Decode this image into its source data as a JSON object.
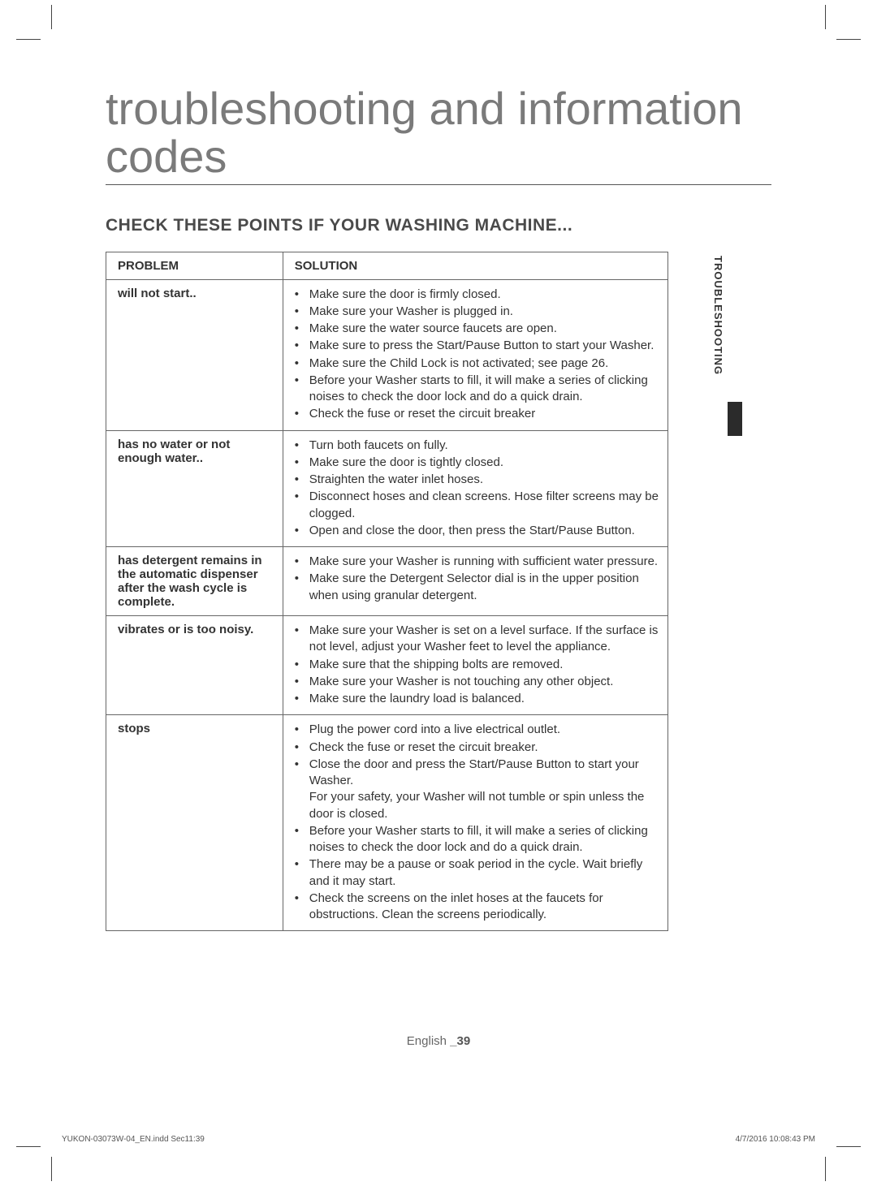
{
  "title": "troubleshooting and information codes",
  "section_heading": "CHECK THESE POINTS IF YOUR WASHING MACHINE...",
  "side_tab": "TROUBLESHOOTING",
  "table": {
    "headers": {
      "problem": "PROBLEM",
      "solution": "SOLUTION"
    },
    "rows": [
      {
        "problem": "will not start..",
        "solutions": [
          "Make sure the door is firmly closed.",
          "Make sure your Washer is plugged in.",
          "Make sure the water source faucets are open.",
          "Make sure to press the Start/Pause Button to start your Washer.",
          "Make sure the Child Lock is not activated; see page 26.",
          "Before your Washer starts to fill, it will make a series of clicking noises to check the door lock and do a quick drain.",
          "Check the fuse or reset the circuit breaker"
        ]
      },
      {
        "problem": "has no water or not enough water..",
        "solutions": [
          "Turn both faucets on fully.",
          "Make sure the door is tightly closed.",
          "Straighten the water inlet hoses.",
          "Disconnect hoses and clean screens. Hose filter screens may be clogged.",
          "Open and close the door, then press the Start/Pause Button."
        ]
      },
      {
        "problem": "has detergent remains in the automatic dispenser after the wash cycle is complete.",
        "solutions": [
          "Make sure your Washer is running with sufficient water pressure.",
          "Make sure the Detergent Selector dial is in the upper position when using granular detergent."
        ]
      },
      {
        "problem": "vibrates or is too noisy.",
        "solutions": [
          "Make sure your Washer is set on a level surface. If the surface is not level, adjust your Washer feet to level the appliance.",
          "Make sure that the shipping bolts are removed.",
          "Make sure your Washer is not touching any other object.",
          "Make sure the laundry load is balanced."
        ]
      },
      {
        "problem": "stops",
        "solutions": [
          "Plug the power cord into a live electrical outlet.",
          "Check the fuse or reset the circuit breaker.",
          "Close the door and press the Start/Pause Button to start your Washer.\nFor your safety, your Washer will not tumble or spin unless the door is closed.",
          "Before your Washer starts to fill, it will make a series of clicking noises to check the door lock and do a quick drain.",
          "There may be a pause or soak period in the cycle. Wait briefly and it may start.",
          "Check the screens on the inlet hoses at the faucets for obstructions. Clean the screens periodically."
        ]
      }
    ]
  },
  "footer": {
    "language": "English",
    "page_num": "_39",
    "doc_ref": "YUKON-03073W-04_EN.indd   Sec11:39",
    "timestamp": "4/7/2016   10:08:43 PM"
  },
  "colors": {
    "title_color": "#7a7a7a",
    "rule_color": "#555555",
    "text_color": "#333333",
    "border_color": "#666666",
    "tab_block": "#2b2b2b",
    "background": "#ffffff"
  }
}
